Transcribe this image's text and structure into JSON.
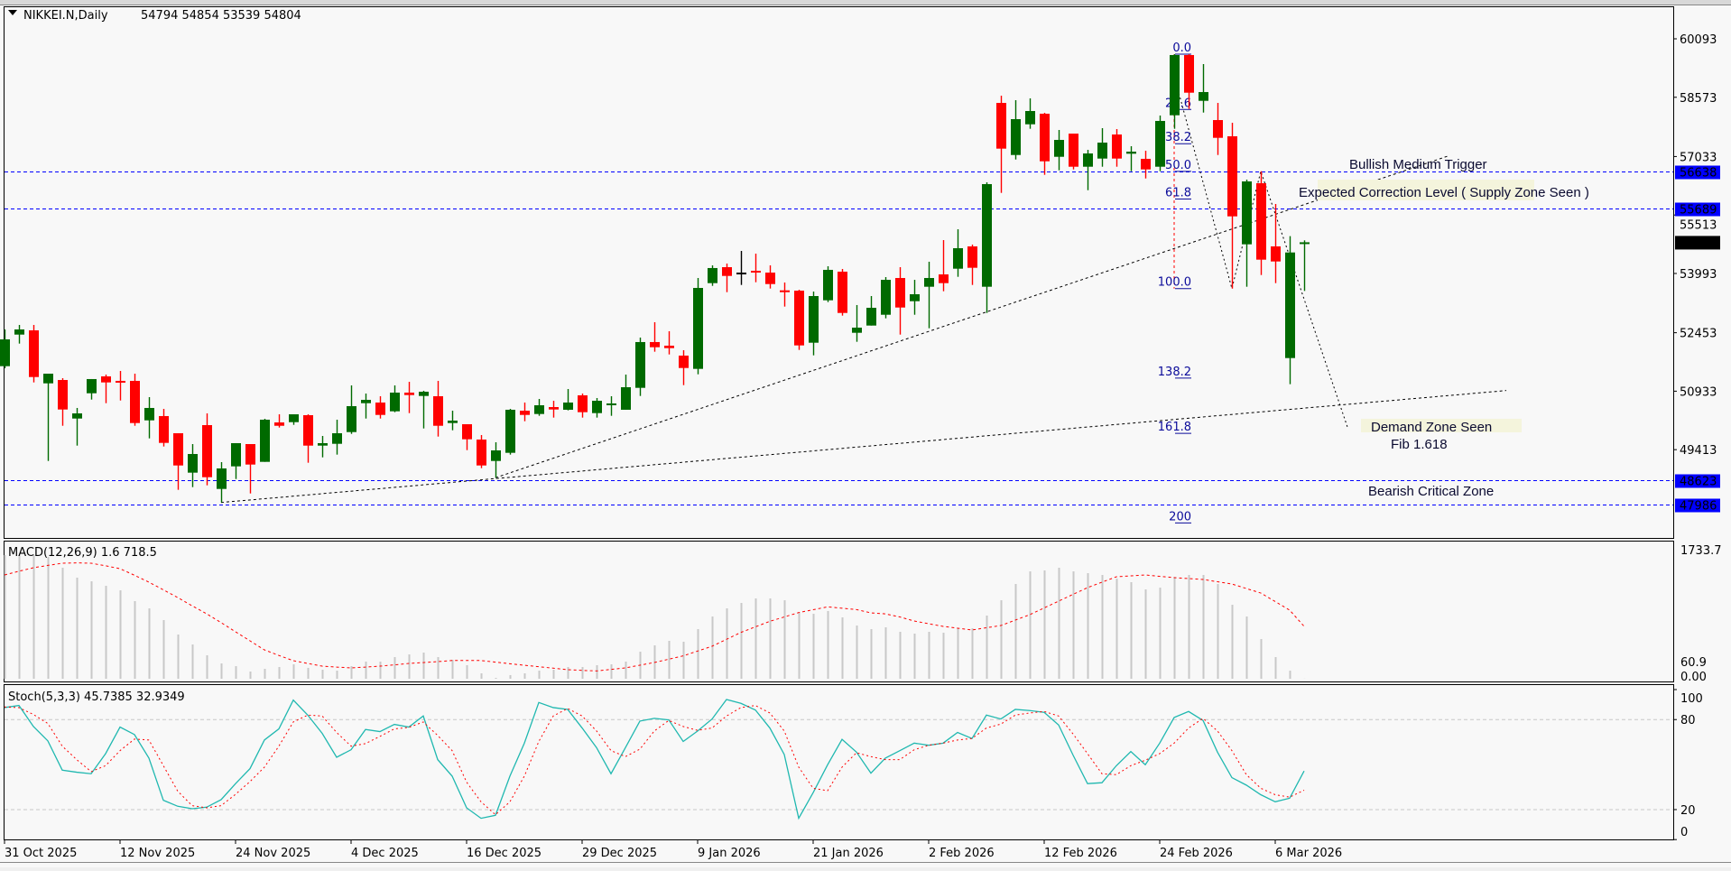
{
  "header": {
    "symbol": "NIKKEI.N,Daily",
    "ohlc": "54794 54854 53539 54804",
    "menu_icon": "triangle-down-icon"
  },
  "colors": {
    "bull": "#006a00",
    "bear": "#ff0000",
    "doji": "#000000",
    "level_line": "#0000ff",
    "level_label_bg": "#0000ff",
    "price_label_bg": "#000000",
    "fib": "#0b0b9a",
    "fib_axis": "#ff0000",
    "macd_hist": "#c8c8c8",
    "macd_signal": "#ff0000",
    "stoch_main": "#20b8b0",
    "stoch_signal": "#ff0000",
    "annotation_bg": "#f4f4dc",
    "background": "#f8f8f8"
  },
  "price_axis": {
    "ticks": [
      "60093",
      "58573",
      "57033",
      "55513",
      "53993",
      "52453",
      "50933",
      "49413"
    ],
    "current_price": "54804"
  },
  "levels": [
    {
      "price": 56638,
      "label": "56638",
      "text": "Bullish Medium Trigger"
    },
    {
      "price": 55689,
      "label": "55689",
      "text": "Expected Correction Level ( Supply Zone Seen )"
    },
    {
      "price": 48623,
      "label": "48623",
      "text": ""
    },
    {
      "price": 47986,
      "label": "47986",
      "text": "Bearish Critical Zone"
    }
  ],
  "annotations": {
    "demand": "Demand Zone Seen",
    "fib_note": "Fib 1.618"
  },
  "fibonacci": {
    "high": 59694,
    "low": 53601,
    "levels": [
      "0.0",
      "23.6",
      "38.2",
      "50.0",
      "61.8",
      "100.0",
      "138.2",
      "161.8",
      "200"
    ]
  },
  "macd": {
    "label": "MACD(12,26,9) 1.6 718.5",
    "axis_top": "1733.7",
    "axis_bottom_a": "0.00",
    "axis_bottom_b": "60.9"
  },
  "stoch": {
    "label": "Stoch(5,3,3) 45.7385 32.9349",
    "axis": [
      "100",
      "80",
      "20",
      "0"
    ]
  },
  "dates": [
    "31 Oct 2025",
    "12 Nov 2025",
    "24 Nov 2025",
    "4 Dec 2025",
    "16 Dec 2025",
    "29 Dec 2025",
    "9 Jan 2026",
    "21 Jan 2026",
    "2 Feb 2026",
    "12 Feb 2026",
    "24 Feb 2026",
    "6 Mar 2026"
  ],
  "chart_data": {
    "type": "candlestick",
    "title": "NIKKEI.N,Daily",
    "ylim": [
      47500,
      60400
    ],
    "ohlc_order": [
      "open",
      "high",
      "low",
      "close"
    ],
    "candles": [
      [
        51583,
        52538,
        51529,
        52280
      ],
      [
        52404,
        52655,
        52170,
        52538
      ],
      [
        52515,
        52655,
        51161,
        51301
      ],
      [
        51137,
        51388,
        49119,
        51388
      ],
      [
        51224,
        51271,
        50034,
        50457
      ],
      [
        50222,
        50497,
        49518,
        50356
      ],
      [
        50879,
        51248,
        50715,
        51248
      ],
      [
        51318,
        51365,
        50621,
        51161
      ],
      [
        51201,
        51459,
        50691,
        51194
      ],
      [
        51201,
        51388,
        50034,
        50105
      ],
      [
        50175,
        50778,
        49706,
        50497
      ],
      [
        50286,
        50473,
        49495,
        49589
      ],
      [
        49840,
        49840,
        48369,
        49002
      ],
      [
        48815,
        49558,
        48439,
        49300
      ],
      [
        50051,
        50356,
        48486,
        48697
      ],
      [
        48392,
        49089,
        48040,
        48925
      ],
      [
        48979,
        49582,
        48650,
        49582
      ],
      [
        49558,
        49558,
        48275,
        49026
      ],
      [
        49096,
        50215,
        49096,
        50192
      ],
      [
        50121,
        50332,
        49988,
        50034
      ],
      [
        50128,
        50332,
        50058,
        50332
      ],
      [
        50309,
        50332,
        49073,
        49518
      ],
      [
        49518,
        49769,
        49213,
        49582
      ],
      [
        49565,
        50192,
        49284,
        49840
      ],
      [
        49870,
        51083,
        49823,
        50544
      ],
      [
        50621,
        50872,
        50222,
        50708
      ],
      [
        50638,
        50802,
        50222,
        50316
      ],
      [
        50410,
        51083,
        50387,
        50896
      ],
      [
        50896,
        51177,
        50363,
        50832
      ],
      [
        50809,
        50943,
        49964,
        50919
      ],
      [
        50802,
        51201,
        49753,
        50034
      ],
      [
        50105,
        50426,
        49917,
        50168
      ],
      [
        50074,
        50074,
        49401,
        49683
      ],
      [
        49676,
        49793,
        48932,
        49002
      ],
      [
        49119,
        49605,
        48683,
        49394
      ],
      [
        49331,
        50473,
        49284,
        50450
      ],
      [
        50426,
        50638,
        50152,
        50316
      ],
      [
        50340,
        50731,
        50293,
        50567
      ],
      [
        50520,
        50684,
        50246,
        50457
      ],
      [
        50450,
        50989,
        50434,
        50638
      ],
      [
        50825,
        50872,
        50246,
        50387
      ],
      [
        50363,
        50755,
        50246,
        50684
      ],
      [
        50607,
        50802,
        50293,
        50615
      ],
      [
        50450,
        51365,
        50450,
        51036
      ],
      [
        51020,
        52327,
        50809,
        52210
      ],
      [
        52210,
        52726,
        51959,
        52076
      ],
      [
        52116,
        52491,
        51888,
        52052
      ],
      [
        51858,
        51998,
        51090,
        51536
      ],
      [
        51513,
        53875,
        51372,
        53617
      ],
      [
        53742,
        54204,
        53671,
        54134
      ],
      [
        54157,
        54251,
        53507,
        53929
      ],
      [
        54016,
        54579,
        53695,
        54016
      ],
      [
        54063,
        54509,
        53765,
        54023
      ],
      [
        54016,
        54204,
        53601,
        53718
      ],
      [
        53554,
        53758,
        53132,
        53540
      ],
      [
        53547,
        53570,
        52006,
        52123
      ],
      [
        52193,
        53523,
        51865,
        53406
      ],
      [
        53296,
        54180,
        53249,
        54087
      ],
      [
        54040,
        54110,
        52897,
        52967
      ],
      [
        52451,
        53172,
        52217,
        52585
      ],
      [
        52639,
        53406,
        52639,
        53101
      ],
      [
        52920,
        53899,
        52827,
        53828
      ],
      [
        53875,
        54157,
        52404,
        53108
      ],
      [
        53272,
        53828,
        52920,
        53453
      ],
      [
        53648,
        54298,
        52569,
        53875
      ],
      [
        53969,
        54861,
        53531,
        53742
      ],
      [
        54117,
        55142,
        53906,
        54650
      ],
      [
        54697,
        54744,
        53695,
        54141
      ],
      [
        53648,
        56362,
        52967,
        56316
      ],
      [
        58427,
        58615,
        56088,
        57238
      ],
      [
        57073,
        58498,
        56956,
        58005
      ],
      [
        57871,
        58545,
        57754,
        58216
      ],
      [
        58146,
        58169,
        56557,
        56909
      ],
      [
        57026,
        57723,
        56675,
        57465
      ],
      [
        57629,
        57629,
        56698,
        56768
      ],
      [
        56768,
        57207,
        56158,
        57113
      ],
      [
        56980,
        57770,
        56768,
        57395
      ],
      [
        57606,
        57747,
        56768,
        56980
      ],
      [
        57106,
        57301,
        56651,
        57160
      ],
      [
        56973,
        57184,
        56463,
        56698
      ],
      [
        56768,
        58099,
        56651,
        57958
      ],
      [
        58106,
        59694,
        57754,
        59671
      ],
      [
        59671,
        59694,
        58270,
        58692
      ],
      [
        58481,
        59436,
        58176,
        58709
      ],
      [
        57981,
        58427,
        57073,
        57519
      ],
      [
        57559,
        57911,
        53601,
        55478
      ],
      [
        54751,
        56433,
        53648,
        56386
      ],
      [
        56339,
        56651,
        53953,
        54352
      ],
      [
        54697,
        55799,
        53742,
        54305
      ],
      [
        51794,
        54962,
        51114,
        54539
      ],
      [
        54794,
        54854,
        53539,
        54804
      ]
    ],
    "date_ticks_every_bars": 8,
    "trendlines": [
      {
        "from_bar": 15,
        "from_price": 48040,
        "to_bar": 104,
        "to_price": 50950
      },
      {
        "from_bar": 34,
        "from_price": 48683,
        "to_bar": 100,
        "to_price": 57050
      },
      {
        "points": [
          [
            81,
            59130
          ],
          [
            85,
            53601
          ],
          [
            87,
            56651
          ],
          [
            93,
            50000
          ]
        ]
      }
    ],
    "macd": {
      "ylim": [
        0,
        1733.7
      ],
      "main": [
        1696,
        1696,
        1696,
        1671,
        1523,
        1387,
        1337,
        1275,
        1213,
        1065,
        966,
        805,
        607,
        470,
        322,
        210,
        173,
        99,
        136,
        161,
        198,
        149,
        124,
        111,
        173,
        235,
        235,
        297,
        334,
        359,
        297,
        260,
        186,
        74,
        12,
        50,
        74,
        111,
        124,
        161,
        161,
        186,
        198,
        235,
        371,
        458,
        520,
        508,
        681,
        854,
        966,
        1040,
        1102,
        1102,
        1077,
        916,
        891,
        929,
        842,
        730,
        681,
        706,
        644,
        619,
        644,
        631,
        693,
        693,
        867,
        1077,
        1300,
        1473,
        1486,
        1523,
        1473,
        1449,
        1424,
        1374,
        1325,
        1226,
        1250,
        1399,
        1424,
        1424,
        1300,
        1015,
        854,
        545,
        297,
        111,
        1.6
      ],
      "signal": [
        1424,
        1475,
        1523,
        1555,
        1585,
        1590,
        1585,
        1550,
        1510,
        1420,
        1325,
        1220,
        1114,
        1000,
        891,
        770,
        644,
        520,
        396,
        320,
        248,
        210,
        173,
        160,
        149,
        160,
        173,
        190,
        210,
        222,
        235,
        250,
        250,
        250,
        228,
        206,
        185,
        165,
        145,
        124,
        115,
        107,
        128,
        149,
        186,
        223,
        268,
        314,
        380,
        446,
        541,
        636,
        712,
        788,
        848,
        908,
        947,
        986,
        968,
        949,
        904,
        890,
        848,
        792,
        755,
        718,
        694,
        669,
        700,
        730,
        805,
        879,
        972,
        1065,
        1158,
        1250,
        1325,
        1399,
        1412,
        1424,
        1405,
        1387,
        1375,
        1362,
        1331,
        1300,
        1238,
        1176,
        1059,
        941,
        718.5
      ]
    },
    "stochastic": {
      "ylim": [
        0,
        100
      ],
      "levels": [
        20,
        80
      ],
      "main": [
        88,
        89.4,
        75.4,
        65.8,
        46.3,
        44.9,
        43.9,
        57.3,
        75,
        70,
        54.3,
        26.2,
        22.2,
        20.6,
        21.6,
        26.6,
        37.3,
        47.3,
        66.4,
        73.8,
        93,
        83,
        70.8,
        54.9,
        59.9,
        73.4,
        72,
        76.8,
        75,
        82.4,
        53.3,
        42.3,
        21.2,
        14.2,
        16.2,
        42.3,
        64.3,
        91.4,
        88,
        86.8,
        74.4,
        61.3,
        43.9,
        61.3,
        79,
        80.8,
        79.8,
        65.4,
        72.4,
        80.4,
        93.4,
        90.8,
        86.4,
        74.4,
        56.7,
        14.2,
        31.3,
        49.9,
        66.8,
        58.3,
        44.3,
        54.3,
        59.3,
        64.3,
        62.9,
        64.3,
        71.4,
        67.4,
        83,
        80.4,
        86.8,
        86,
        84.8,
        76.4,
        56.3,
        37.3,
        37.9,
        49.3,
        58.7,
        49.9,
        64.3,
        81.4,
        85.4,
        79.4,
        58.3,
        41.3,
        36.3,
        29.9,
        25.2,
        27.6,
        45.7385
      ],
      "signal": [
        88.4,
        88,
        83.4,
        77.4,
        62.3,
        53.3,
        45.3,
        49.3,
        59.3,
        67,
        66.4,
        49.3,
        32.2,
        22.6,
        21.2,
        22.6,
        30.2,
        38.7,
        48.3,
        62.3,
        78.4,
        83,
        82.4,
        71.4,
        62.3,
        64,
        68.8,
        73.8,
        74.8,
        78.4,
        69.4,
        59.3,
        38.3,
        25.2,
        16.6,
        25.2,
        42.3,
        65.4,
        82.4,
        87.4,
        82.4,
        72.4,
        59.3,
        55.3,
        60.3,
        72.4,
        79.4,
        75.4,
        72.8,
        74.4,
        82.4,
        88,
        89.4,
        84.4,
        72.4,
        48.3,
        34.2,
        32.6,
        48.3,
        57.9,
        55.3,
        53.3,
        53.3,
        59.9,
        62.9,
        64.3,
        66.4,
        67.4,
        74.4,
        77,
        83,
        84.4,
        85.4,
        82.4,
        70.4,
        57.3,
        43.9,
        43.3,
        49.3,
        52.9,
        57.3,
        64.3,
        74.4,
        80.8,
        72.4,
        59.3,
        43.3,
        34.2,
        29.9,
        28.3,
        32.9349
      ]
    }
  }
}
